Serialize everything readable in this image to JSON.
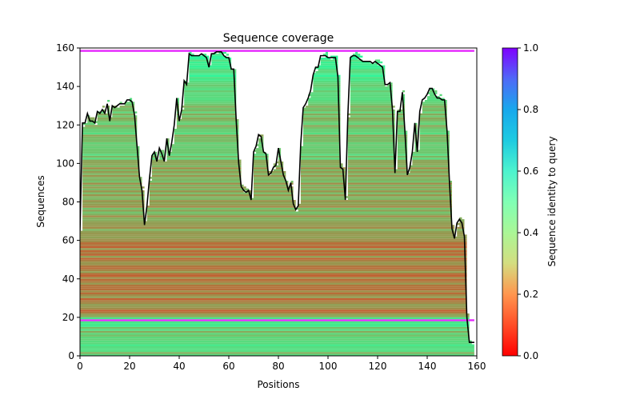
{
  "chart_data": {
    "type": "heatmap",
    "title": "Sequence coverage",
    "xlabel": "Positions",
    "ylabel": "Sequences",
    "xlim": [
      0,
      160
    ],
    "ylim": [
      0,
      160
    ],
    "xticks": [
      "0",
      "20",
      "40",
      "60",
      "80",
      "100",
      "120",
      "140",
      "160"
    ],
    "yticks": [
      "0",
      "20",
      "40",
      "60",
      "80",
      "100",
      "120",
      "140",
      "160"
    ],
    "colorbar": {
      "label": "Sequence identity to query",
      "range": [
        0,
        1
      ],
      "ticks": [
        "0.0",
        "0.2",
        "0.4",
        "0.6",
        "0.8",
        "1.0"
      ],
      "colormap": "rainbow_r"
    },
    "n_sequences": 159,
    "n_positions": 159,
    "highlighted_rows": [
      {
        "row": 158,
        "identity": 0.95
      },
      {
        "row": 18,
        "identity": 0.95
      }
    ],
    "coverage_line": {
      "name": "coverage",
      "color": "#000000",
      "x": [
        0,
        1,
        2,
        3,
        4,
        5,
        6,
        7,
        8,
        9,
        10,
        11,
        12,
        13,
        14,
        15,
        16,
        17,
        18,
        19,
        20,
        21,
        22,
        23,
        24,
        25,
        26,
        27,
        28,
        29,
        30,
        31,
        32,
        33,
        34,
        35,
        36,
        37,
        38,
        39,
        40,
        41,
        42,
        43,
        44,
        45,
        46,
        47,
        48,
        49,
        50,
        51,
        52,
        53,
        54,
        55,
        56,
        57,
        58,
        59,
        60,
        61,
        62,
        63,
        64,
        65,
        66,
        67,
        68,
        69,
        70,
        71,
        72,
        73,
        74,
        75,
        76,
        77,
        78,
        79,
        80,
        81,
        82,
        83,
        84,
        85,
        86,
        87,
        88,
        89,
        90,
        91,
        92,
        93,
        94,
        95,
        96,
        97,
        98,
        99,
        100,
        101,
        102,
        103,
        104,
        105,
        106,
        107,
        108,
        109,
        110,
        111,
        112,
        113,
        114,
        115,
        116,
        117,
        118,
        119,
        120,
        121,
        122,
        123,
        124,
        125,
        126,
        127,
        128,
        129,
        130,
        131,
        132,
        133,
        134,
        135,
        136,
        137,
        138,
        139,
        140,
        141,
        142,
        143,
        144,
        145,
        146,
        147,
        148,
        149,
        150,
        151,
        152,
        153,
        154,
        155,
        156,
        157,
        158,
        159
      ],
      "y": [
        65,
        121,
        121,
        126,
        122,
        122,
        121,
        127,
        126,
        128,
        126,
        131,
        122,
        130,
        129,
        130,
        131,
        131,
        131,
        133,
        133,
        132,
        125,
        109,
        93,
        86,
        68,
        78,
        92,
        104,
        106,
        101,
        108,
        105,
        101,
        113,
        104,
        111,
        120,
        134,
        122,
        128,
        143,
        141,
        157,
        156,
        156,
        156,
        156,
        157,
        156,
        155,
        150,
        157,
        157,
        158,
        158,
        158,
        156,
        155,
        155,
        149,
        149,
        122,
        100,
        88,
        86,
        85,
        86,
        81,
        106,
        109,
        115,
        114,
        106,
        105,
        94,
        95,
        98,
        99,
        108,
        101,
        94,
        91,
        86,
        90,
        79,
        76,
        78,
        110,
        129,
        131,
        134,
        138,
        146,
        150,
        150,
        156,
        156,
        156,
        155,
        155,
        155,
        155,
        145,
        98,
        97,
        81,
        125,
        155,
        156,
        156,
        155,
        154,
        153,
        153,
        153,
        153,
        152,
        153,
        152,
        151,
        150,
        141,
        141,
        142,
        128,
        95,
        127,
        127,
        137,
        117,
        94,
        98,
        106,
        121,
        106,
        127,
        133,
        134,
        136,
        139,
        139,
        136,
        134,
        134,
        133,
        133,
        117,
        90,
        66,
        61,
        69,
        71,
        69,
        62,
        20,
        7,
        7,
        7
      ]
    }
  }
}
